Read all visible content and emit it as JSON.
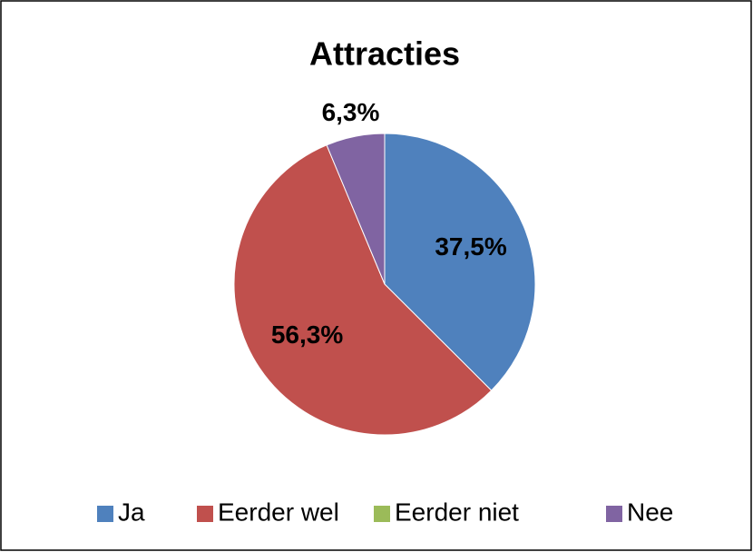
{
  "chart_data": {
    "type": "pie",
    "title": "Attracties",
    "categories": [
      "Ja",
      "Eerder wel",
      "Eerder niet",
      "Nee"
    ],
    "values": [
      37.5,
      56.3,
      0,
      6.3
    ],
    "value_labels": [
      "37,5%",
      "56,3%",
      null,
      "6,3%"
    ],
    "colors": [
      "#4f81bd",
      "#c0504d",
      "#9bbb59",
      "#8064a2"
    ],
    "legend": "bottom"
  }
}
